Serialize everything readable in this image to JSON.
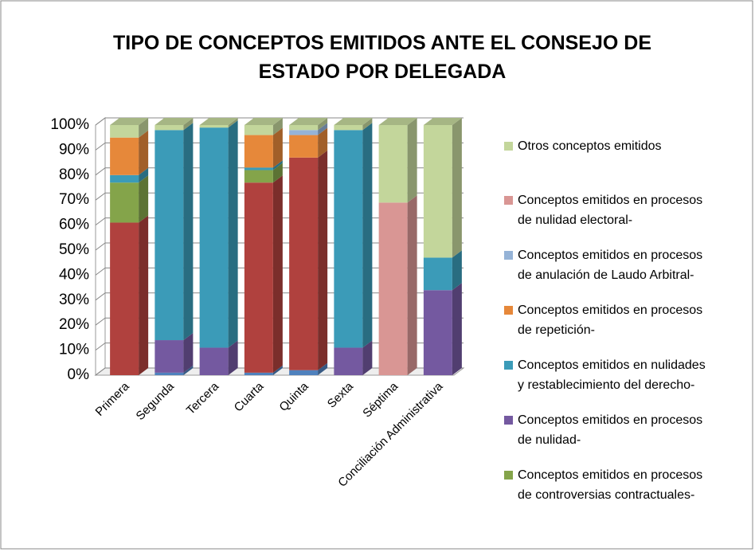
{
  "chart_data": {
    "type": "bar3d_stacked",
    "title": "TIPO DE CONCEPTOS EMITIDOS ANTE EL CONSEJO DE ESTADO POR DELEGADA",
    "categories": [
      "Primera",
      "Segunda",
      "Tercera",
      "Cuarta",
      "Quinta",
      "Sexta",
      "Séptima",
      "Conciliación Administrativa"
    ],
    "ylim": [
      0,
      100
    ],
    "yticks": [
      {
        "value": 0,
        "label": "0%"
      },
      {
        "value": 10,
        "label": "10%"
      },
      {
        "value": 20,
        "label": "20%"
      },
      {
        "value": 30,
        "label": "30%"
      },
      {
        "value": 40,
        "label": "40%"
      },
      {
        "value": 50,
        "label": "50%"
      },
      {
        "value": 60,
        "label": "60%"
      },
      {
        "value": 70,
        "label": "70%"
      },
      {
        "value": 80,
        "label": "80%"
      },
      {
        "value": 90,
        "label": "90%"
      },
      {
        "value": 100,
        "label": "100%"
      }
    ],
    "grid": true,
    "legend": "right",
    "series": [
      {
        "color": "#4f81bd",
        "values": [
          0,
          1,
          0,
          1,
          2,
          0,
          0,
          0
        ]
      },
      {
        "color": "#b0413e",
        "values": [
          61,
          0,
          0,
          76,
          85,
          0,
          0,
          0
        ]
      },
      {
        "name": "Conceptos emitidos en procesos de controversias contractuales-",
        "color": "#84a44a",
        "values": [
          16,
          0,
          0,
          5,
          0,
          0,
          0,
          0
        ]
      },
      {
        "name": "Conceptos emitidos en procesos de nulidad-",
        "color": "#7459a0",
        "values": [
          0,
          13,
          11,
          0,
          0,
          11,
          0,
          34
        ]
      },
      {
        "name": "Conceptos emitidos en nulidades y restablecimiento del derecho-",
        "color": "#3b9bb8",
        "values": [
          3,
          84,
          88,
          1,
          0,
          87,
          0,
          13
        ]
      },
      {
        "name": "Conceptos emitidos en procesos de repetición-",
        "color": "#e6883a",
        "values": [
          15,
          0,
          0,
          13,
          9,
          0,
          0,
          0
        ]
      },
      {
        "name": "Conceptos emitidos en procesos de anulación de Laudo Arbitral-",
        "color": "#95b3d7",
        "values": [
          0,
          0,
          0,
          0,
          2,
          0,
          0,
          0
        ]
      },
      {
        "name": "Conceptos emitidos en procesos de nulidad electoral-",
        "color": "#d99694",
        "values": [
          0,
          0,
          0,
          0,
          0,
          0,
          69,
          0
        ]
      },
      {
        "name": "Otros conceptos emitidos",
        "color": "#c3d69b",
        "values": [
          5,
          2,
          1,
          4,
          2,
          2,
          31,
          53
        ]
      }
    ]
  }
}
